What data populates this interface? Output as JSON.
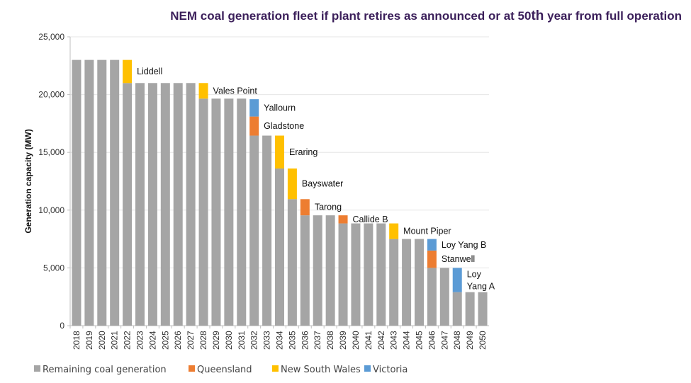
{
  "chart_data": {
    "type": "bar",
    "stacked": true,
    "title": "NEM coal generation fleet if plant retires as announced or at 50th year from full operation",
    "title_parts": {
      "before": "NEM coal generation fleet if plant retires as announced or at 50",
      "sup": "th",
      "after": " year from full operation"
    },
    "xlabel": "",
    "ylabel": "Generation capacity (MW)",
    "ylim": [
      0,
      25000
    ],
    "yticks": [
      0,
      5000,
      10000,
      15000,
      20000,
      25000
    ],
    "ytick_labels": [
      "0",
      "5,000",
      "10,000",
      "15,000",
      "20,000",
      "25,000"
    ],
    "grid": true,
    "legend_position": "bottom",
    "categories": [
      "2018",
      "2019",
      "2020",
      "2021",
      "2022",
      "2023",
      "2024",
      "2025",
      "2026",
      "2027",
      "2028",
      "2029",
      "2030",
      "2031",
      "2032",
      "2033",
      "2034",
      "2035",
      "2036",
      "2037",
      "2038",
      "2039",
      "2040",
      "2041",
      "2042",
      "2043",
      "2044",
      "2045",
      "2046",
      "2047",
      "2048",
      "2049",
      "2050"
    ],
    "series": [
      {
        "name": "Remaining coal generation",
        "color": "#a5a5a5",
        "values": [
          23000,
          23000,
          23000,
          23000,
          21000,
          21000,
          21000,
          21000,
          21000,
          21000,
          19650,
          19650,
          19650,
          19650,
          16450,
          16450,
          13600,
          10950,
          9550,
          9550,
          9550,
          8850,
          8850,
          8850,
          8850,
          7500,
          7500,
          7500,
          5000,
          5000,
          2900,
          2900,
          2900
        ]
      },
      {
        "name": "Queensland",
        "color": "#ed7d31",
        "values": [
          0,
          0,
          0,
          0,
          0,
          0,
          0,
          0,
          0,
          0,
          0,
          0,
          0,
          0,
          1650,
          0,
          0,
          0,
          1400,
          0,
          0,
          700,
          0,
          0,
          0,
          0,
          0,
          0,
          1500,
          0,
          0,
          0,
          0
        ]
      },
      {
        "name": "New South Wales",
        "color": "#ffc000",
        "values": [
          0,
          0,
          0,
          0,
          2000,
          0,
          0,
          0,
          0,
          0,
          1350,
          0,
          0,
          0,
          0,
          0,
          2850,
          2650,
          0,
          0,
          0,
          0,
          0,
          0,
          0,
          1350,
          0,
          0,
          0,
          0,
          0,
          0,
          0
        ]
      },
      {
        "name": "Victoria",
        "color": "#5b9bd5",
        "values": [
          0,
          0,
          0,
          0,
          0,
          0,
          0,
          0,
          0,
          0,
          0,
          0,
          0,
          0,
          1500,
          0,
          0,
          0,
          0,
          0,
          0,
          0,
          0,
          0,
          0,
          0,
          0,
          0,
          1000,
          0,
          2100,
          0,
          0
        ]
      }
    ],
    "annotations": [
      {
        "year": "2022",
        "series": "New South Wales",
        "text": "Liddell"
      },
      {
        "year": "2028",
        "series": "New South Wales",
        "text": "Vales Point"
      },
      {
        "year": "2032",
        "series": "Victoria",
        "text": "Yallourn"
      },
      {
        "year": "2032",
        "series": "Queensland",
        "text": "Gladstone"
      },
      {
        "year": "2034",
        "series": "New South Wales",
        "text": "Eraring"
      },
      {
        "year": "2035",
        "series": "New South Wales",
        "text": "Bayswater"
      },
      {
        "year": "2036",
        "series": "Queensland",
        "text": "Tarong"
      },
      {
        "year": "2039",
        "series": "Queensland",
        "text": "Callide B"
      },
      {
        "year": "2043",
        "series": "New South Wales",
        "text": "Mount Piper"
      },
      {
        "year": "2046",
        "series": "Victoria",
        "text": "Loy Yang B"
      },
      {
        "year": "2046",
        "series": "Queensland",
        "text": "Stanwell"
      },
      {
        "year": "2048",
        "series": "Victoria",
        "text": "Loy Yang A"
      }
    ]
  }
}
